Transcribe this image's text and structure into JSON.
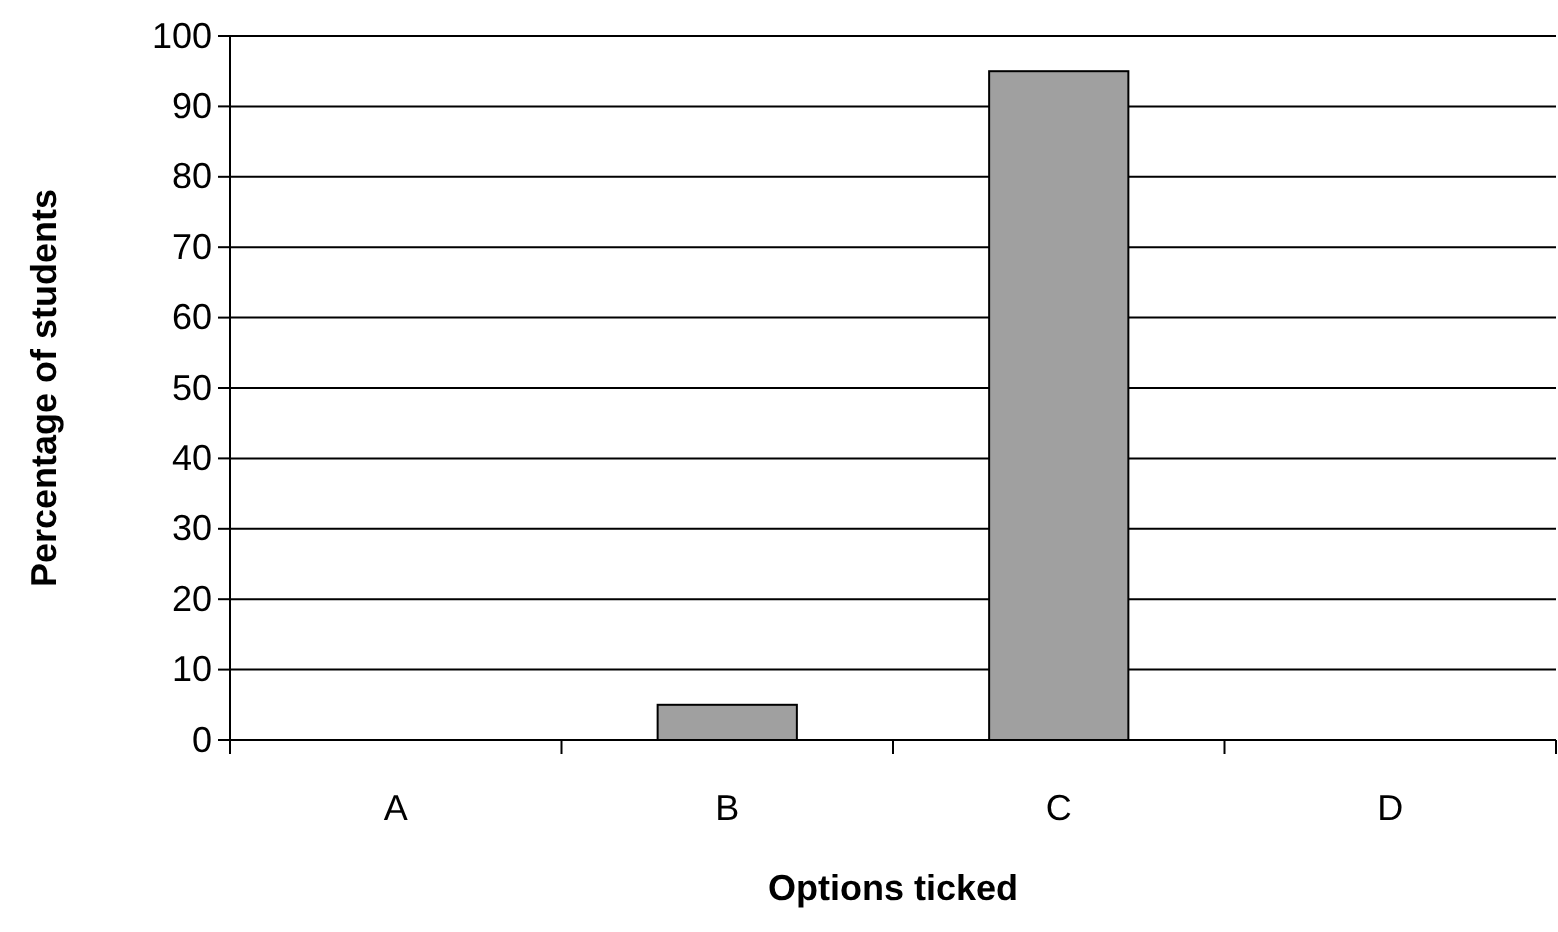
{
  "chart_data": {
    "type": "bar",
    "xlabel": "Options ticked",
    "ylabel": "Percentage of students",
    "categories": [
      "A",
      "B",
      "C",
      "D"
    ],
    "values": [
      0,
      5,
      95,
      0
    ],
    "color": "#a0a0a0",
    "ylim": [
      0,
      100
    ],
    "yticks": [
      0,
      10,
      20,
      30,
      40,
      50,
      60,
      70,
      80,
      90,
      100
    ],
    "grid": "y"
  }
}
